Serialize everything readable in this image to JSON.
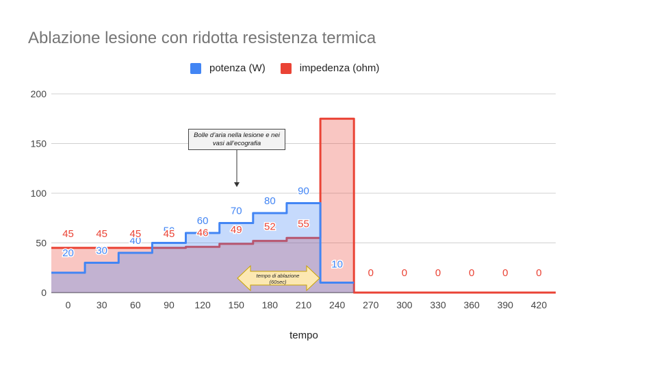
{
  "chart_data": {
    "type": "area",
    "title": "Ablazione lesione con ridotta resistenza termica",
    "xlabel": "tempo",
    "ylabel": "",
    "categories": [
      0,
      30,
      60,
      90,
      120,
      150,
      180,
      210,
      240,
      270,
      300,
      330,
      360,
      390,
      420
    ],
    "ylim": [
      0,
      200
    ],
    "yticks": [
      0,
      50,
      100,
      150,
      200
    ],
    "grid": true,
    "legend_position": "top",
    "stepped": true,
    "series": [
      {
        "name": "potenza (W)",
        "color": "#4285f4",
        "values": [
          20,
          30,
          40,
          50,
          60,
          70,
          80,
          90,
          10,
          null,
          null,
          null,
          null,
          null,
          null
        ]
      },
      {
        "name": "impedenza (ohm)",
        "color": "#ea4335",
        "values": [
          45,
          45,
          45,
          45,
          46,
          49,
          52,
          55,
          175,
          0,
          0,
          0,
          0,
          0,
          0
        ]
      }
    ],
    "annotations": [
      {
        "text": "Bolle d’aria nella lesione e nei vasi all’ecografia",
        "x": 150,
        "y": 107
      },
      {
        "text": "tempo di ablazione (60sec)",
        "x_range": [
          150,
          210
        ],
        "y": 15
      }
    ]
  },
  "colors": {
    "potenza": "#4285f4",
    "impedenza": "#ea4335",
    "annotation_arrow_fill": "#fce8b2",
    "annotation_arrow_stroke": "#c9a400"
  }
}
